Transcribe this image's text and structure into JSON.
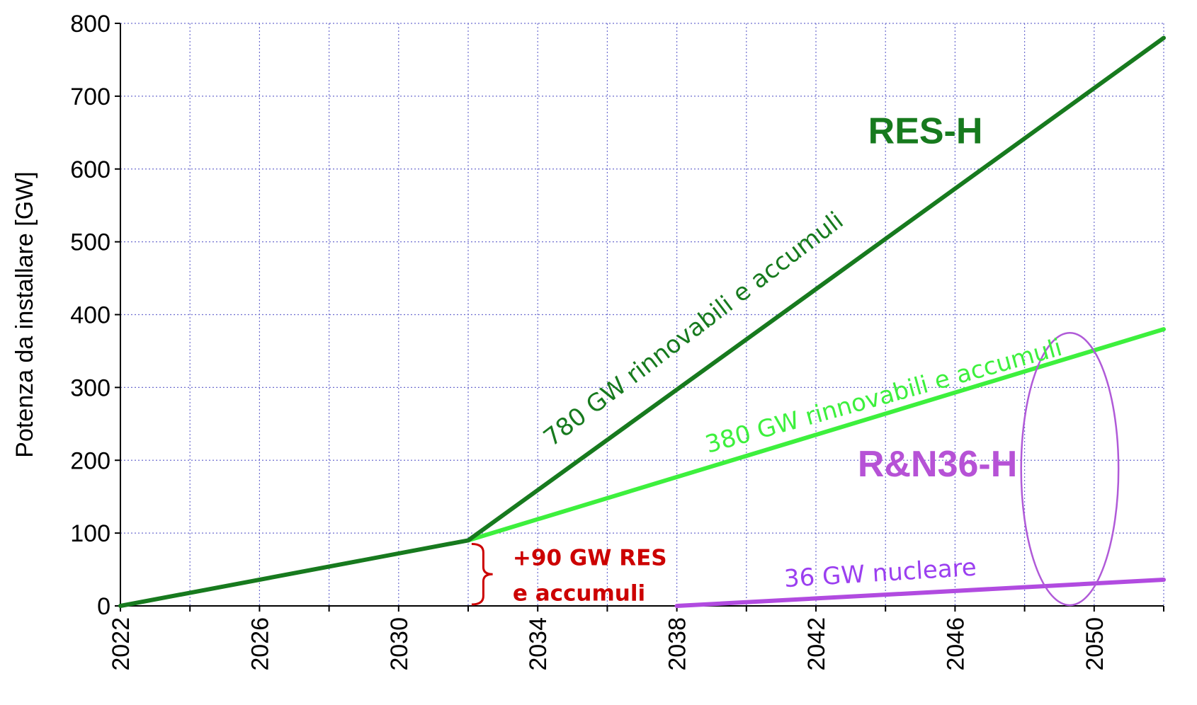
{
  "colors": {
    "dark_green": "#177a1e",
    "light_green": "#3df03d",
    "purple_line": "#b14be0",
    "purple_label": "#b652d6",
    "purple_series_label": "#9b3ff0",
    "ellipse": "#b05ad8",
    "red": "#cc0000",
    "grid": "#6d6dcf"
  },
  "chart_data": {
    "type": "line",
    "title": "",
    "xlabel": "",
    "ylabel": "Potenza da installare [GW]",
    "xlim": [
      2022,
      2052
    ],
    "ylim": [
      0,
      800
    ],
    "grid": true,
    "xticks": [
      2022,
      2024,
      2026,
      2028,
      2030,
      2032,
      2034,
      2036,
      2038,
      2040,
      2042,
      2044,
      2046,
      2048,
      2050,
      2052
    ],
    "xtick_labels": [
      "2022",
      "2026",
      "2030",
      "2034",
      "2038",
      "2042",
      "2046",
      "2050"
    ],
    "xtick_label_values": [
      2022,
      2026,
      2030,
      2034,
      2038,
      2042,
      2046,
      2050
    ],
    "yticks": [
      0,
      100,
      200,
      300,
      400,
      500,
      600,
      700,
      800
    ],
    "ytick_labels": [
      "0",
      "100",
      "200",
      "300",
      "400",
      "500",
      "600",
      "700",
      "800"
    ],
    "series": [
      {
        "name": "780 GW rinnovabili e accumuli",
        "scenario": "RES-H",
        "color_key": "dark_green",
        "x": [
          2022,
          2032,
          2052
        ],
        "y": [
          0,
          90,
          780
        ]
      },
      {
        "name": "380 GW rinnovabili e accumuli",
        "scenario": "R&N36-H",
        "color_key": "light_green",
        "x": [
          2032,
          2052
        ],
        "y": [
          90,
          380
        ]
      },
      {
        "name": "36 GW nucleare",
        "scenario": "R&N36-H",
        "color_key": "purple_line",
        "x": [
          2038,
          2052
        ],
        "y": [
          0,
          36
        ]
      }
    ],
    "annotations": [
      {
        "text": "RES-H",
        "role": "scenario-label",
        "color_key": "dark_green",
        "x": 2043.5,
        "y": 635
      },
      {
        "text": "R&N36-H",
        "role": "scenario-label",
        "color_key": "purple_label",
        "x": 2043.2,
        "y": 178
      },
      {
        "text": "780 GW rinnovabili e accumuli",
        "role": "series-label",
        "color_key": "dark_green",
        "x": 2034.4,
        "y": 218,
        "angle_deg": -37.3
      },
      {
        "text": "380 GW rinnovabili e accumuli",
        "role": "series-label",
        "color_key": "light_green",
        "x": 2038.9,
        "y": 210,
        "angle_deg": -15.5
      },
      {
        "text": "36 GW nucleare",
        "role": "series-label",
        "color_key": "purple_series_label",
        "x": 2041.1,
        "y": 26,
        "angle_deg": -3.5
      }
    ],
    "bracket": {
      "color_key": "red",
      "x": 2032.1,
      "y_range": [
        2,
        85
      ],
      "label_lines": [
        "+90 GW RES",
        "e accumuli"
      ]
    },
    "ellipse": {
      "color_key": "ellipse",
      "cx": 2049.3,
      "cy": 188,
      "rx": 1.4,
      "ry": 187
    }
  }
}
